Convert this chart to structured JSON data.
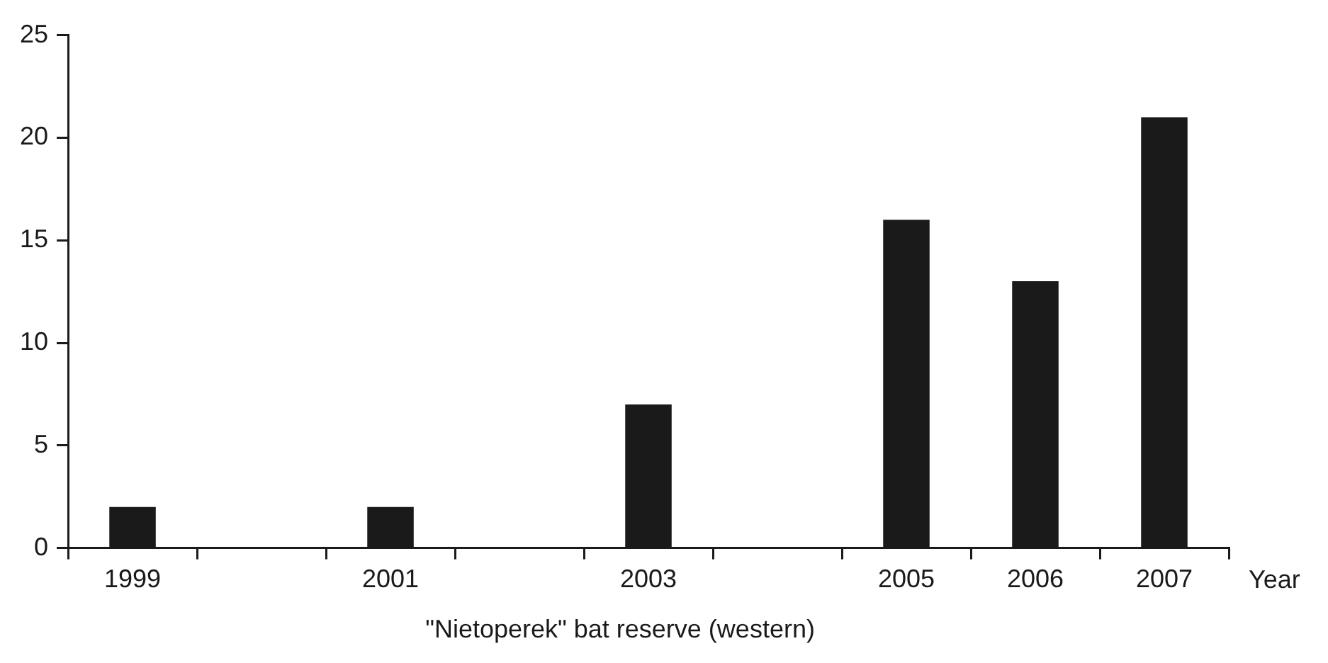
{
  "chart_data": {
    "type": "bar",
    "title": "\"Nietoperek\" bat reserve (western)",
    "xlabel": "Year",
    "categories": [
      "1999",
      null,
      "2001",
      null,
      "2003",
      null,
      "2005",
      "2006",
      "2007"
    ],
    "values": [
      2,
      null,
      2,
      null,
      7,
      null,
      16,
      13,
      21
    ],
    "color": "#1a1a1a",
    "ylim": [
      0,
      25
    ],
    "yticks": [
      0,
      5,
      10,
      15,
      20,
      25
    ],
    "grid": false,
    "legend": false
  }
}
